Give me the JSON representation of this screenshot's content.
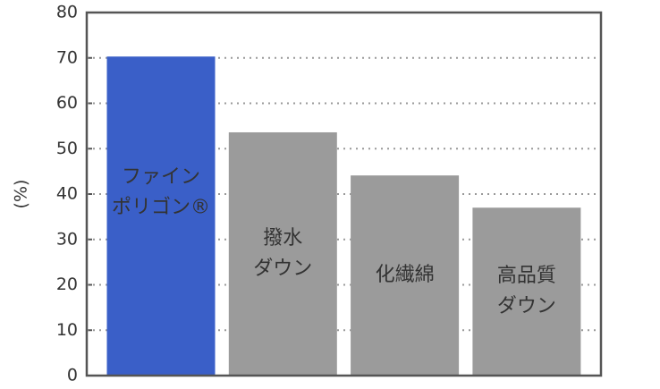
{
  "chart_data": {
    "type": "bar",
    "y_label": "(%)",
    "categories": [
      [
        "ファイン",
        "ポリゴン®"
      ],
      [
        "撥水",
        "ダウン"
      ],
      [
        "化繊綿"
      ],
      [
        "高品質",
        "ダウン"
      ]
    ],
    "values": [
      70.3,
      53.6,
      44.1,
      37.0
    ],
    "colors": [
      "#3a5fc8",
      "#9b9b9b",
      "#9b9b9b",
      "#9b9b9b"
    ],
    "ylim": [
      0,
      80
    ],
    "yticks": [
      0,
      10,
      20,
      30,
      40,
      50,
      60,
      70,
      80
    ],
    "grid": true
  }
}
